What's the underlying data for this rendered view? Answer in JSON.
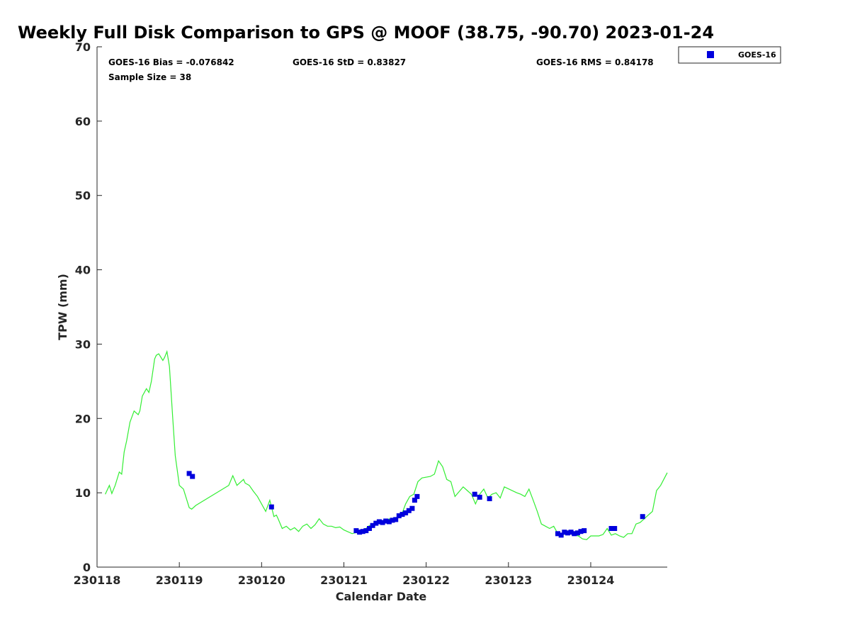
{
  "chart_data": {
    "type": "scatter",
    "title": "Weekly Full Disk Comparison to GPS @ MOOF (38.75, -90.70) 2023-01-24",
    "xlabel": "Calendar Date",
    "ylabel": "TPW (mm)",
    "xlim": [
      230118,
      230124.93
    ],
    "ylim": [
      0,
      70
    ],
    "x_ticks": [
      "230118",
      "230119",
      "230120",
      "230121",
      "230122",
      "230123",
      "230124"
    ],
    "y_ticks": [
      "0",
      "10",
      "20",
      "30",
      "40",
      "50",
      "60",
      "70"
    ],
    "stats": {
      "bias": "GOES-16 Bias = -0.076842",
      "std": "GOES-16 StD = 0.83827",
      "rms": "GOES-16 RMS = 0.84178",
      "sample": "Sample Size = 38"
    },
    "legend_position": "top-right, outside plot",
    "colors": {
      "gps_line": "#33ee33",
      "goes16": "#0000dd"
    },
    "series": [
      {
        "kind": "line",
        "x": [
          230118.1,
          230118.15,
          230118.18,
          230118.22,
          230118.27,
          230118.3,
          230118.33,
          230118.36,
          230118.4,
          230118.45,
          230118.5,
          230118.52,
          230118.55,
          230118.6,
          230118.63,
          230118.66,
          230118.7,
          230118.72,
          230118.75,
          230118.8,
          230118.82,
          230118.85,
          230118.88,
          230118.92,
          230118.95,
          230119.0,
          230119.05,
          230119.12,
          230119.15,
          230119.2,
          230119.6,
          230119.65,
          230119.7,
          230119.75,
          230119.78,
          230119.8,
          230119.85,
          230119.9,
          230119.95,
          230120.0,
          230120.05,
          230120.1,
          230120.15,
          230120.18,
          230120.2,
          230120.25,
          230120.3,
          230120.35,
          230120.4,
          230120.45,
          230120.5,
          230120.55,
          230120.6,
          230120.65,
          230120.7,
          230120.75,
          230120.8,
          230120.85,
          230120.9,
          230120.95,
          230121.0,
          230121.1,
          230121.2,
          230121.25,
          230121.3,
          230121.35,
          230121.4,
          230121.45,
          230121.5,
          230121.55,
          230121.6,
          230121.65,
          230121.7,
          230121.75,
          230121.8,
          230121.85,
          230121.9,
          230121.95,
          230122.05,
          230122.1,
          230122.15,
          230122.2,
          230122.25,
          230122.3,
          230122.35,
          230122.45,
          230122.5,
          230122.55,
          230122.6,
          230122.65,
          230122.7,
          230122.75,
          230122.8,
          230122.85,
          230122.9,
          230122.95,
          230123.1,
          230123.15,
          230123.2,
          230123.25,
          230123.3,
          230123.35,
          230123.4,
          230123.45,
          230123.5,
          230123.55,
          230123.6,
          230123.65,
          230123.7,
          230123.75,
          230123.8,
          230123.85,
          230123.9,
          230123.95,
          230124.0,
          230124.1,
          230124.15,
          230124.2,
          230124.25,
          230124.3,
          230124.35,
          230124.4,
          230124.45,
          230124.5,
          230124.55,
          230124.6,
          230124.65,
          230124.7,
          230124.72,
          230124.75,
          230124.8,
          230124.85,
          230124.93
        ],
        "y": [
          9.8,
          11.0,
          9.9,
          11.0,
          12.8,
          12.5,
          15.5,
          17.0,
          19.5,
          21.0,
          20.5,
          21.0,
          23.0,
          24.0,
          23.5,
          25.0,
          28.0,
          28.5,
          28.7,
          27.8,
          28.2,
          29.0,
          27.0,
          20.0,
          15.0,
          11.0,
          10.5,
          8.0,
          7.8,
          8.3,
          11.0,
          12.3,
          11.0,
          11.5,
          11.8,
          11.3,
          11.0,
          10.2,
          9.5,
          8.5,
          7.5,
          9.0,
          6.8,
          7.0,
          6.5,
          5.2,
          5.5,
          5.0,
          5.3,
          4.8,
          5.5,
          5.8,
          5.2,
          5.7,
          6.5,
          5.8,
          5.5,
          5.5,
          5.3,
          5.4,
          5.0,
          4.5,
          4.8,
          5.0,
          5.5,
          5.8,
          6.0,
          6.3,
          6.0,
          6.5,
          6.2,
          6.8,
          7.0,
          8.5,
          9.5,
          9.8,
          11.5,
          12.0,
          12.2,
          12.5,
          14.3,
          13.5,
          11.8,
          11.5,
          9.5,
          10.8,
          10.3,
          9.8,
          8.5,
          9.8,
          10.5,
          9.3,
          9.8,
          10.0,
          9.3,
          10.8,
          10.0,
          9.8,
          9.5,
          10.5,
          9.0,
          7.5,
          5.8,
          5.5,
          5.2,
          5.5,
          4.5,
          4.3,
          4.5,
          4.8,
          4.3,
          4.2,
          3.8,
          3.7,
          4.2,
          4.2,
          4.4,
          5.2,
          4.3,
          4.5,
          4.2,
          4.0,
          4.5,
          4.5,
          5.8,
          6.0,
          6.5,
          7.0,
          7.2,
          7.5,
          10.3,
          11.0,
          12.7
        ]
      },
      {
        "name": "GOES-16",
        "kind": "scatter",
        "x": [
          230119.12,
          230119.16,
          230120.12,
          230121.15,
          230121.19,
          230121.23,
          230121.27,
          230121.31,
          230121.35,
          230121.39,
          230121.43,
          230121.47,
          230121.51,
          230121.55,
          230121.59,
          230121.63,
          230121.67,
          230121.71,
          230121.75,
          230121.79,
          230121.83,
          230121.86,
          230121.89,
          230122.59,
          230122.65,
          230122.77,
          230123.6,
          230123.64,
          230123.68,
          230123.72,
          230123.76,
          230123.8,
          230123.84,
          230123.88,
          230123.92,
          230124.25,
          230124.29,
          230124.63
        ],
        "y": [
          12.6,
          12.2,
          8.1,
          4.9,
          4.7,
          4.8,
          4.9,
          5.2,
          5.6,
          5.9,
          6.1,
          6.0,
          6.2,
          6.1,
          6.3,
          6.4,
          6.9,
          7.1,
          7.3,
          7.6,
          7.9,
          9.0,
          9.5,
          9.8,
          9.4,
          9.2,
          4.5,
          4.3,
          4.7,
          4.6,
          4.7,
          4.5,
          4.6,
          4.8,
          4.9,
          5.2,
          5.2,
          6.8
        ]
      }
    ]
  }
}
